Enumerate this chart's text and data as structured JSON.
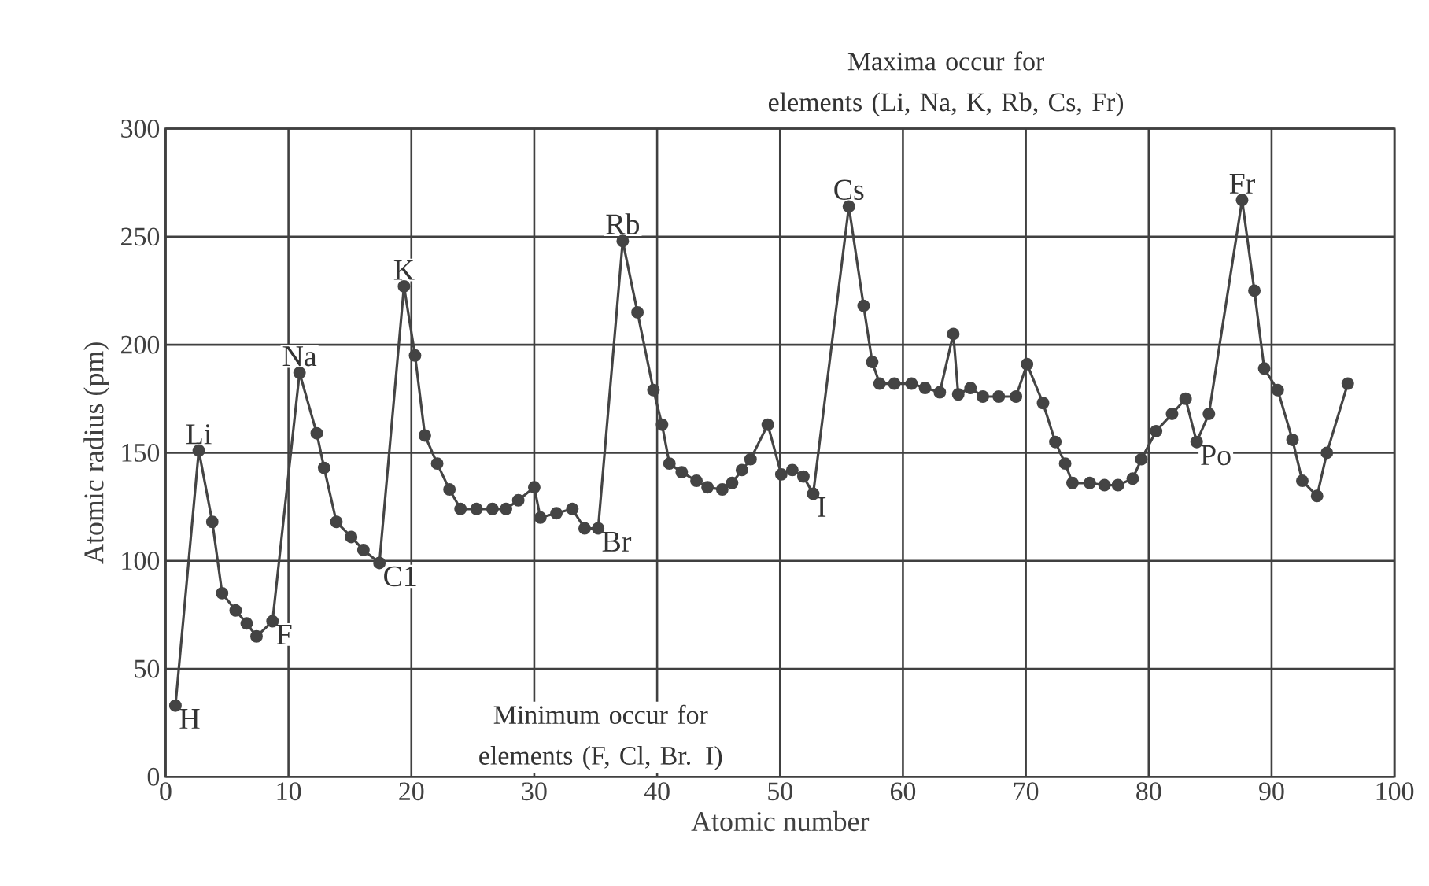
{
  "chart_data": {
    "type": "line",
    "xlabel": "Atomic number",
    "ylabel": "Atomic radius (pm)",
    "xlim": [
      0,
      100
    ],
    "ylim": [
      0,
      300
    ],
    "xticks": [
      0,
      10,
      20,
      30,
      40,
      50,
      60,
      70,
      80,
      90,
      100
    ],
    "yticks": [
      0,
      50,
      100,
      150,
      200,
      250,
      300
    ],
    "grid": true,
    "marker": "circle",
    "line_style": "solid",
    "series": [
      {
        "color": "#444444",
        "x": [
          0.8,
          2.7,
          3.8,
          4.6,
          5.7,
          6.6,
          7.4,
          8.7,
          10.9,
          12.3,
          12.9,
          13.9,
          15.1,
          16.1,
          17.4,
          19.4,
          20.3,
          21.1,
          22.1,
          23.1,
          24.0,
          25.3,
          26.6,
          27.7,
          28.7,
          30.0,
          30.5,
          31.8,
          33.1,
          34.1,
          35.2,
          37.2,
          38.4,
          39.7,
          40.4,
          41.0,
          42.0,
          43.2,
          44.1,
          45.3,
          46.1,
          46.9,
          47.6,
          49.0,
          50.1,
          51.0,
          51.9,
          52.7,
          55.6,
          56.8,
          57.5,
          58.1,
          59.3,
          60.7,
          61.8,
          63.0,
          64.1,
          64.5,
          65.5,
          66.5,
          67.8,
          69.2,
          70.1,
          71.4,
          72.4,
          73.2,
          73.8,
          75.2,
          76.4,
          77.5,
          78.7,
          79.4,
          80.6,
          81.9,
          83.0,
          83.9,
          84.9,
          87.6,
          88.6,
          89.4,
          90.5,
          91.7,
          92.5,
          93.7,
          94.5,
          96.2
        ],
        "values": [
          33,
          151,
          118,
          85,
          77,
          71,
          65,
          72,
          187,
          159,
          143,
          118,
          111,
          105,
          99,
          227,
          195,
          158,
          145,
          133,
          124,
          124,
          124,
          124,
          128,
          134,
          120,
          122,
          124,
          115,
          115,
          248,
          215,
          179,
          163,
          145,
          141,
          137,
          134,
          133,
          136,
          142,
          147,
          163,
          140,
          142,
          139,
          131,
          264,
          218,
          192,
          182,
          182,
          182,
          180,
          178,
          205,
          177,
          180,
          176,
          176,
          176,
          191,
          173,
          155,
          145,
          136,
          136,
          135,
          135,
          138,
          147,
          160,
          168,
          175,
          155,
          168,
          267,
          225,
          189,
          179,
          156,
          137,
          130,
          150,
          182
        ]
      }
    ],
    "annotations": [
      "Maxima occur for\nelements (Li, Na, K, Rb, Cs, Fr)",
      "Minimum occur for\nelements (F, Cl, Br. I)",
      {
        "text": "H",
        "x": 0.8,
        "y": 33
      },
      {
        "text": "Li",
        "x": 2.7,
        "y": 151
      },
      {
        "text": "F",
        "x": 8.7,
        "y": 72
      },
      {
        "text": "Na",
        "x": 10.9,
        "y": 187
      },
      {
        "text": "C1",
        "x": 17.4,
        "y": 99
      },
      {
        "text": "K",
        "x": 19.4,
        "y": 227
      },
      {
        "text": "Br",
        "x": 35.2,
        "y": 115
      },
      {
        "text": "Rb",
        "x": 37.2,
        "y": 248
      },
      {
        "text": "I",
        "x": 52.7,
        "y": 131
      },
      {
        "text": "Cs",
        "x": 55.6,
        "y": 264
      },
      {
        "text": "Po",
        "x": 83.9,
        "y": 155
      },
      {
        "text": "Fr",
        "x": 87.6,
        "y": 267
      }
    ]
  }
}
